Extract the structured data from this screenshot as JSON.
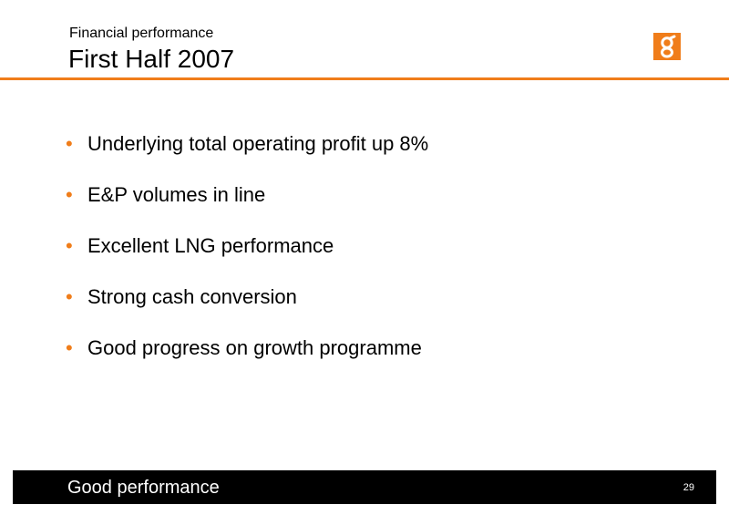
{
  "header": {
    "subtitle": "Financial performance",
    "title": "First Half 2007",
    "logo_icon": "bg-logo-icon",
    "accent_color": "#f07d1a"
  },
  "bullets": [
    {
      "marker": "•",
      "text": "Underlying total operating profit up 8%"
    },
    {
      "marker": "•",
      "text": "E&P volumes in line"
    },
    {
      "marker": "•",
      "text": "Excellent LNG performance"
    },
    {
      "marker": "•",
      "text": "Strong cash conversion"
    },
    {
      "marker": "•",
      "text": "Good progress on growth programme"
    }
  ],
  "footer": {
    "text": "Good performance",
    "page_number": "29",
    "background_color": "#000000"
  }
}
